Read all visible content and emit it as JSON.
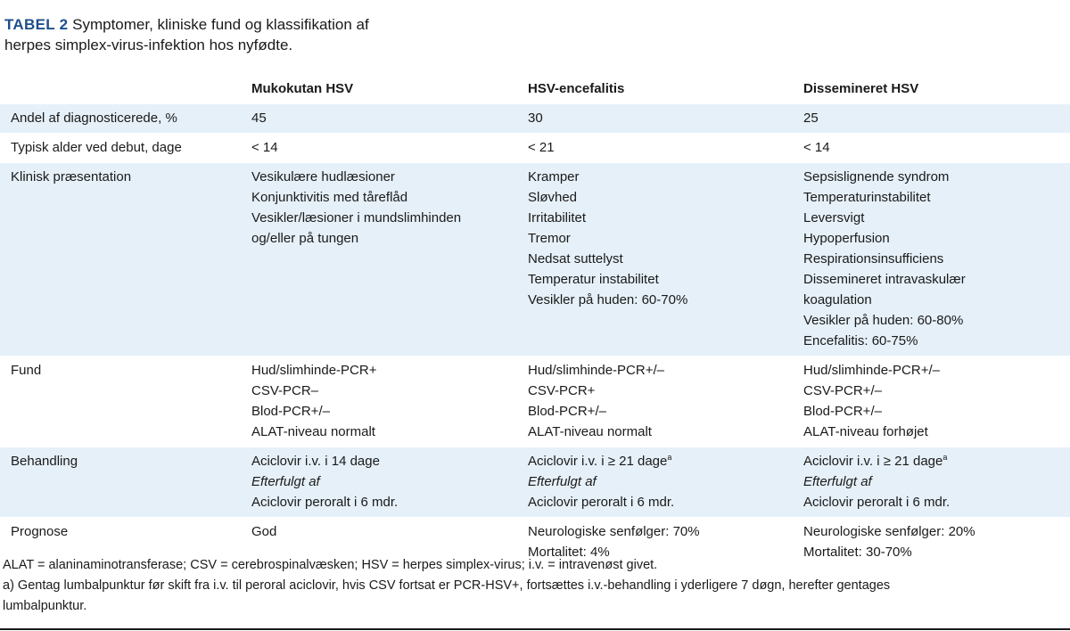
{
  "caption": {
    "label": "TABEL 2",
    "title_line1": "Symptomer, kliniske fund og klassifikation af",
    "title_line2": "herpes simplex-virus-infektion hos nyfødte."
  },
  "table": {
    "headers": [
      "",
      "Mukokutan HSV",
      "HSV-encefalitis",
      "Dissemineret HSV"
    ],
    "rows": [
      {
        "label": "Andel af diagnosticerede, %",
        "cols": [
          [
            {
              "t": "45"
            }
          ],
          [
            {
              "t": "30"
            }
          ],
          [
            {
              "t": "25"
            }
          ]
        ]
      },
      {
        "label": "Typisk alder ved debut, dage",
        "cols": [
          [
            {
              "t": "< 14"
            }
          ],
          [
            {
              "t": "< 21"
            }
          ],
          [
            {
              "t": "< 14"
            }
          ]
        ]
      },
      {
        "label": "Klinisk præsentation",
        "cols": [
          [
            {
              "t": "Vesikulære hudlæsioner"
            },
            {
              "t": "Konjunktivitis med tåreflåd"
            },
            {
              "t": "Vesikler/læsioner i mundslimhinden"
            },
            {
              "t": "og/eller på tungen"
            }
          ],
          [
            {
              "t": "Kramper"
            },
            {
              "t": "Sløvhed"
            },
            {
              "t": "Irritabilitet"
            },
            {
              "t": "Tremor"
            },
            {
              "t": "Nedsat suttelyst"
            },
            {
              "t": "Temperatur instabilitet"
            },
            {
              "t": "Vesikler på huden: 60-70%"
            }
          ],
          [
            {
              "t": "Sepsislignende syndrom"
            },
            {
              "t": "Temperaturinstabilitet"
            },
            {
              "t": "Leversvigt"
            },
            {
              "t": "Hypoperfusion"
            },
            {
              "t": "Respirationsinsufficiens"
            },
            {
              "t": "Dissemineret intravaskulær"
            },
            {
              "t": "koagulation"
            },
            {
              "t": "Vesikler på huden: 60-80%"
            },
            {
              "t": "Encefalitis: 60-75%"
            }
          ]
        ]
      },
      {
        "label": "Fund",
        "cols": [
          [
            {
              "t": "Hud/slimhinde-PCR+"
            },
            {
              "t": "CSV-PCR–"
            },
            {
              "t": "Blod-PCR+/–"
            },
            {
              "t": "ALAT-niveau normalt"
            }
          ],
          [
            {
              "t": "Hud/slimhinde-PCR+/–"
            },
            {
              "t": "CSV-PCR+"
            },
            {
              "t": "Blod-PCR+/–"
            },
            {
              "t": "ALAT-niveau normalt"
            }
          ],
          [
            {
              "t": "Hud/slimhinde-PCR+/–"
            },
            {
              "t": "CSV-PCR+/–"
            },
            {
              "t": "Blod-PCR+/–"
            },
            {
              "t": "ALAT-niveau forhøjet"
            }
          ]
        ]
      },
      {
        "label": "Behandling",
        "cols": [
          [
            {
              "t": "Aciclovir i.v. i 14 dage"
            },
            {
              "t": "Efterfulgt af",
              "i": true
            },
            {
              "t": "Aciclovir peroralt i 6 mdr."
            }
          ],
          [
            {
              "t": "Aciclovir i.v. i ≥ 21 dage",
              "sup": "a"
            },
            {
              "t": "Efterfulgt af",
              "i": true
            },
            {
              "t": "Aciclovir peroralt i 6 mdr."
            }
          ],
          [
            {
              "t": "Aciclovir i.v. i ≥ 21 dage",
              "sup": "a"
            },
            {
              "t": "Efterfulgt af",
              "i": true
            },
            {
              "t": "Aciclovir peroralt i 6 mdr."
            }
          ]
        ]
      },
      {
        "label": "Prognose",
        "cols": [
          [
            {
              "t": "God"
            }
          ],
          [
            {
              "t": "Neurologiske senfølger: 70%"
            },
            {
              "t": "Mortalitet: 4%"
            }
          ],
          [
            {
              "t": "Neurologiske senfølger: 20%"
            },
            {
              "t": "Mortalitet: 30-70%"
            }
          ]
        ]
      }
    ]
  },
  "footnotes": {
    "abbreviations": "ALAT = alaninaminotransferase; CSV = cerebrospinalvæsken; HSV = herpes simplex-virus; i.v. = intravenøst givet.",
    "note_a_line1": "a) Gentag lumbalpunktur før skift fra i.v. til peroral aciclovir, hvis CSV fortsat er PCR-HSV+, fortsættes i.v.-behandling i yderligere 7 døgn, herefter gentages",
    "note_a_line2": "lumbalpunktur."
  },
  "colors": {
    "label_blue": "#1f4e8c",
    "row_shade": "#e6f0f8",
    "rule": "#1a1a1a"
  }
}
